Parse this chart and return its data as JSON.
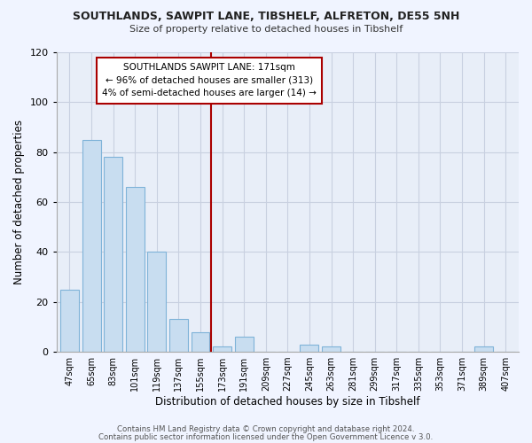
{
  "title": "SOUTHLANDS, SAWPIT LANE, TIBSHELF, ALFRETON, DE55 5NH",
  "subtitle": "Size of property relative to detached houses in Tibshelf",
  "xlabel": "Distribution of detached houses by size in Tibshelf",
  "ylabel": "Number of detached properties",
  "bar_color": "#c8ddf0",
  "bar_edge_color": "#7fb3d8",
  "categories": [
    "47sqm",
    "65sqm",
    "83sqm",
    "101sqm",
    "119sqm",
    "137sqm",
    "155sqm",
    "173sqm",
    "191sqm",
    "209sqm",
    "227sqm",
    "245sqm",
    "263sqm",
    "281sqm",
    "299sqm",
    "317sqm",
    "335sqm",
    "353sqm",
    "371sqm",
    "389sqm",
    "407sqm"
  ],
  "values": [
    25,
    85,
    78,
    66,
    40,
    13,
    8,
    2,
    6,
    0,
    0,
    3,
    2,
    0,
    0,
    0,
    0,
    0,
    0,
    2,
    0
  ],
  "ylim": [
    0,
    120
  ],
  "yticks": [
    0,
    20,
    40,
    60,
    80,
    100,
    120
  ],
  "vline_index": 7,
  "vline_color": "#aa0000",
  "annotation_title": "SOUTHLANDS SAWPIT LANE: 171sqm",
  "annotation_line1": "← 96% of detached houses are smaller (313)",
  "annotation_line2": "4% of semi-detached houses are larger (14) →",
  "annotation_box_color": "#ffffff",
  "annotation_box_edge": "#aa0000",
  "footer1": "Contains HM Land Registry data © Crown copyright and database right 2024.",
  "footer2": "Contains public sector information licensed under the Open Government Licence v 3.0.",
  "background_color": "#f0f4ff",
  "plot_bg_color": "#e8eef8",
  "grid_color": "#c8d0e0"
}
